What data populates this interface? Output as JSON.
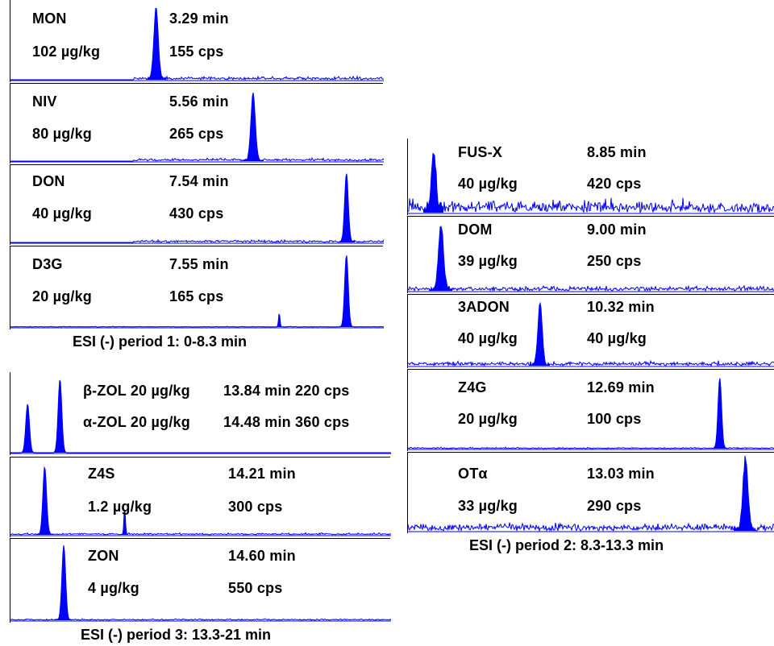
{
  "chart_data": [
    {
      "type": "line",
      "title": "ESI (-) period 1: 0-8.3 min",
      "panels": [
        {
          "key": "mon",
          "analyte": "MON",
          "concentration": "102 µg/kg",
          "retention_time": "3.29 min",
          "intensity": "155 cps",
          "peaks": [
            {
              "position": 0.39,
              "height": 0.93,
              "width": 0.012
            }
          ],
          "noise": 0.05
        },
        {
          "key": "niv",
          "analyte": "NIV",
          "concentration": "80 µg/kg",
          "retention_time": "5.56 min",
          "intensity": "265 cps",
          "peaks": [
            {
              "position": 0.65,
              "height": 0.9,
              "width": 0.012
            }
          ],
          "noise": 0.05
        },
        {
          "key": "don",
          "analyte": "DON",
          "concentration": "40 µg/kg",
          "retention_time": "7.54 min",
          "intensity": "430 cps",
          "peaks": [
            {
              "position": 0.9,
              "height": 0.92,
              "width": 0.01
            }
          ],
          "noise": 0.04
        },
        {
          "key": "d3g",
          "analyte": "D3G",
          "concentration": "20 µg/kg",
          "retention_time": "7.55 min",
          "intensity": "165 cps",
          "peaks": [
            {
              "position": 0.9,
              "height": 0.93,
              "width": 0.01
            },
            {
              "position": 0.72,
              "height": 0.18,
              "width": 0.004
            }
          ],
          "noise": 0.01
        }
      ]
    },
    {
      "type": "line",
      "title": "ESI (-) period 2: 8.3-13.3 min",
      "panels": [
        {
          "key": "fusx",
          "analyte": "FUS-X",
          "concentration": "40 µg/kg",
          "retention_time": "8.85 min",
          "intensity": "420 cps",
          "peaks": [
            {
              "position": 0.07,
              "height": 0.8,
              "width": 0.012
            }
          ],
          "noise": 0.22
        },
        {
          "key": "dom",
          "analyte": "DOM",
          "concentration": "39 µg/kg",
          "retention_time": "9.00 min",
          "intensity": "250 cps",
          "peaks": [
            {
              "position": 0.09,
              "height": 0.9,
              "width": 0.014
            }
          ],
          "noise": 0.08
        },
        {
          "key": "adon",
          "analyte": "3ADON",
          "concentration": "40 µg/kg",
          "retention_time": "10.32 min",
          "intensity": "40 µg/kg",
          "peaks": [
            {
              "position": 0.36,
              "height": 0.9,
              "width": 0.012
            }
          ],
          "noise": 0.08
        },
        {
          "key": "z4g",
          "analyte": "Z4G",
          "concentration": "20 µg/kg",
          "retention_time": "12.69 min",
          "intensity": "100 cps",
          "peaks": [
            {
              "position": 0.85,
              "height": 0.93,
              "width": 0.01
            }
          ],
          "noise": 0.02
        },
        {
          "key": "ota",
          "analyte": "OTα",
          "concentration": "33 µg/kg",
          "retention_time": "13.03 min",
          "intensity": "290 cps",
          "peaks": [
            {
              "position": 0.92,
              "height": 0.9,
              "width": 0.014
            }
          ],
          "noise": 0.12
        }
      ]
    },
    {
      "type": "line",
      "title": "ESI (-) period 3: 13.3-21 min",
      "panels": [
        {
          "key": "zol",
          "analyte_1": "β-ZOL 20 µg/kg",
          "analyte_2": "α-ZOL 20 µg/kg",
          "info_1": "13.84 min 220 cps",
          "info_2": "14.48 min 360 cps",
          "peaks": [
            {
              "position": 0.045,
              "height": 0.63,
              "width": 0.01
            },
            {
              "position": 0.13,
              "height": 0.95,
              "width": 0.01
            }
          ],
          "noise": 0.0
        },
        {
          "key": "z4s",
          "analyte": "Z4S",
          "concentration": "1.2 µg/kg",
          "retention_time": "14.21 min",
          "intensity": "300 cps",
          "peaks": [
            {
              "position": 0.09,
              "height": 0.9,
              "width": 0.01
            },
            {
              "position": 0.3,
              "height": 0.35,
              "width": 0.004
            }
          ],
          "noise": 0.03
        },
        {
          "key": "zon",
          "analyte": "ZON",
          "concentration": "4 µg/kg",
          "retention_time": "14.60 min",
          "intensity": "550 cps",
          "peaks": [
            {
              "position": 0.14,
              "height": 0.95,
              "width": 0.01
            }
          ],
          "noise": 0.02
        }
      ]
    }
  ],
  "colors": {
    "trace": "#0000ff",
    "text": "#000000",
    "axis": "#000000"
  }
}
